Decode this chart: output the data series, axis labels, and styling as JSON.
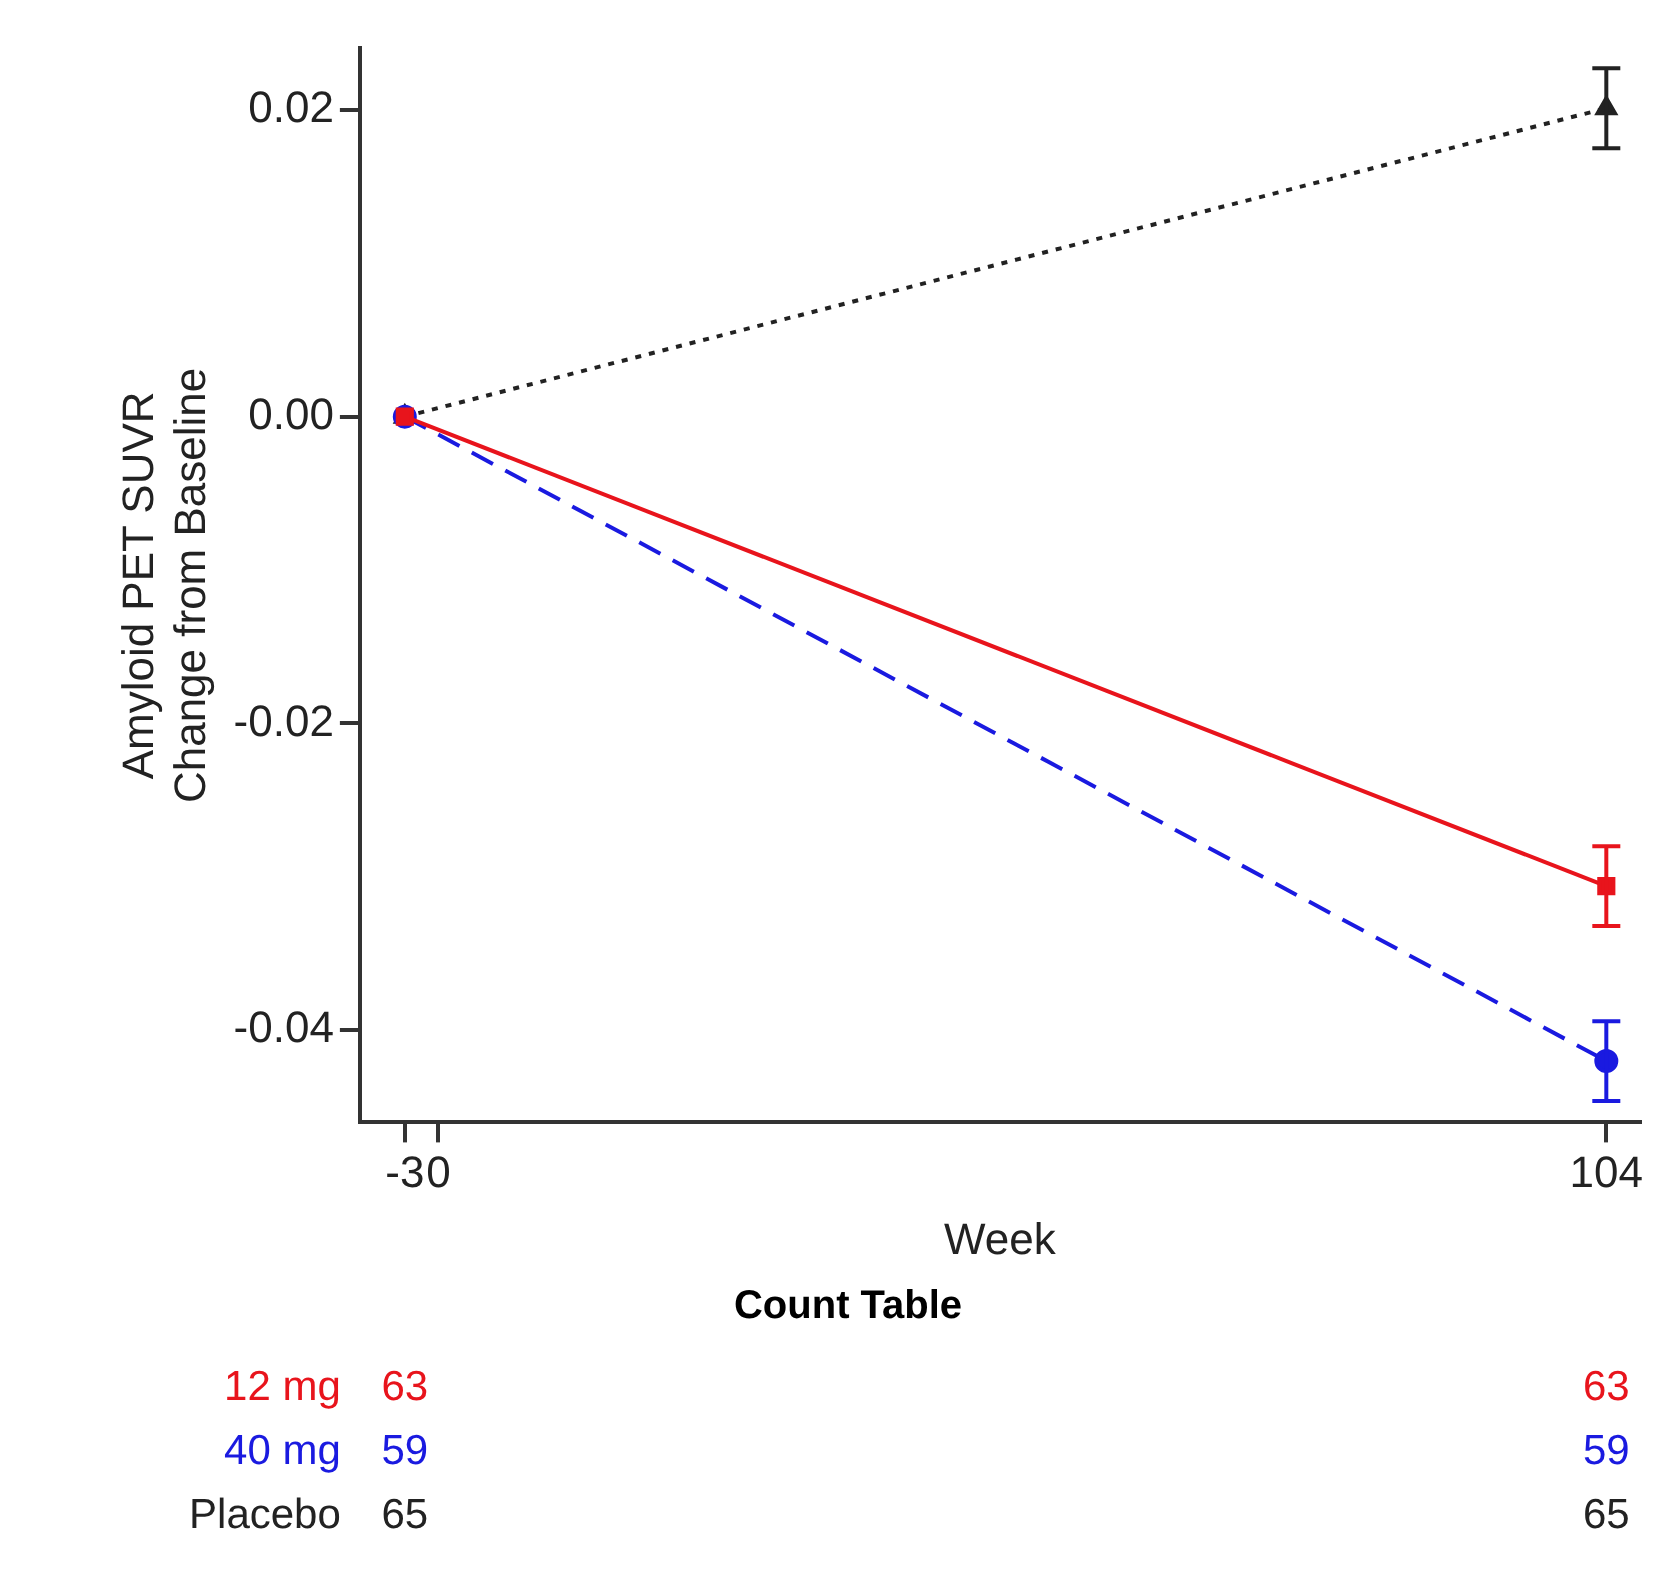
{
  "chart_data": {
    "type": "line",
    "x": [
      -3,
      104
    ],
    "series": [
      {
        "name": "12 mg",
        "color": "#e8141c",
        "values": [
          0,
          -0.0306
        ],
        "errors": [
          null,
          0.0026
        ],
        "marker": "square",
        "line_style": "solid"
      },
      {
        "name": "40 mg",
        "color": "#1a1ae0",
        "values": [
          0,
          -0.042
        ],
        "errors": [
          null,
          0.0026
        ],
        "marker": "circle",
        "line_style": "dashed"
      },
      {
        "name": "Placebo",
        "color": "#222222",
        "values": [
          0,
          0.0201
        ],
        "errors": [
          null,
          0.0026
        ],
        "marker": "triangle",
        "line_style": "dotted"
      }
    ],
    "xlabel": "Week",
    "ylabel": "Amyloid PET SUVR\nChange from Baseline",
    "xlim": [
      -7,
      107
    ],
    "xticks": [
      -3,
      0,
      104
    ],
    "ylim": [
      -0.046,
      0.024
    ],
    "yticks": [
      -0.04,
      -0.02,
      {
        "value": 0,
        "label": "0.00"
      },
      0.02
    ],
    "grid": false,
    "legend": false,
    "annotations": [
      "Count Table",
      "63",
      "63",
      "59",
      "59",
      "65",
      "65"
    ]
  }
}
